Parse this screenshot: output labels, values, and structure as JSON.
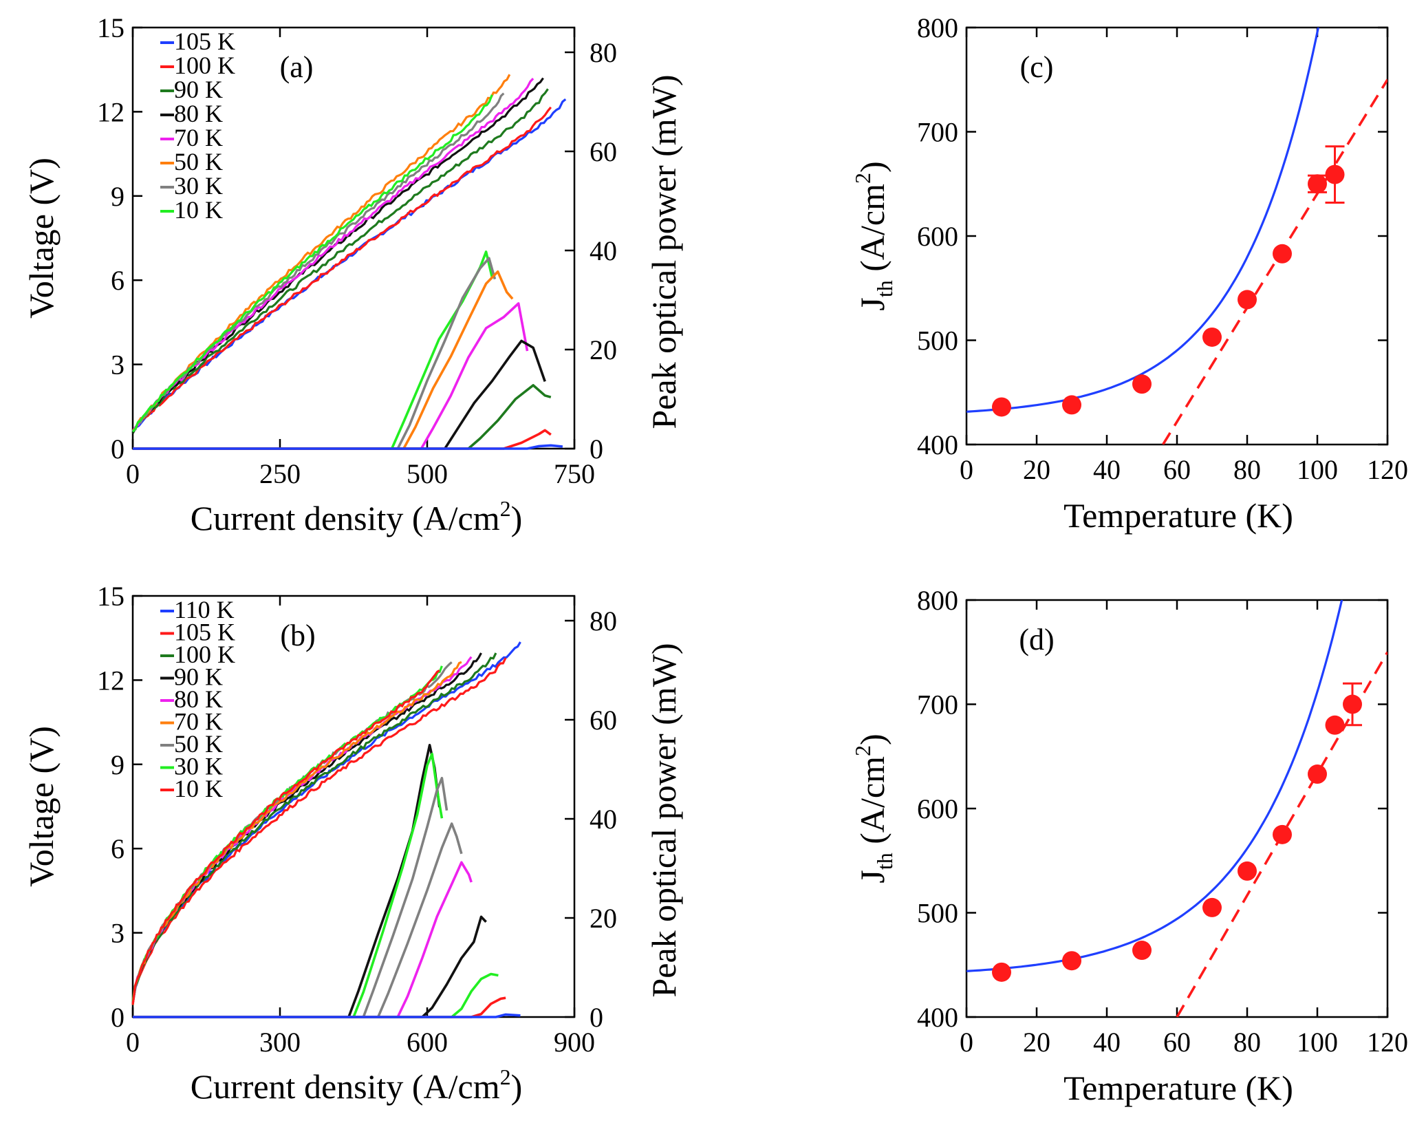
{
  "colors": {
    "105 K": "#1f3fff",
    "110 K": "#1f3fff",
    "100 K": "#ff1a1a",
    "90 K": "#1e7a1e",
    "80 K": "#111111",
    "70 K": "#ee22ee",
    "50 K": "#ff7f0e",
    "30 K": "#808080",
    "10 K": "#22ee22",
    "fit": "#1f3fff",
    "dash": "#ff1a1a",
    "marker": "#ff1a1a"
  },
  "chart_data": [
    {
      "id": "a",
      "type": "line",
      "panel_label": "(a)",
      "xlabel_main": "Current density (A/cm",
      "xlabel_sup": "2",
      "xlabel_end": ")",
      "ylabel": "Voltage (V)",
      "y2label": "Peak optical power (mW)",
      "xlim": [
        0,
        750
      ],
      "ylim": [
        0,
        15
      ],
      "y2lim": [
        0,
        85
      ],
      "xticks": [
        0,
        250,
        500,
        750
      ],
      "yticks": [
        0,
        3,
        6,
        9,
        12,
        15
      ],
      "y2ticks": [
        0,
        20,
        40,
        60,
        80
      ],
      "legend": [
        "105 K",
        "100 K",
        "90 K",
        "80 K",
        "70 K",
        "50 K",
        "30 K",
        "10 K"
      ],
      "legend_colors": [
        "#1f3fff",
        "#ff1a1a",
        "#1e7a1e",
        "#111111",
        "#ee22ee",
        "#ff7f0e",
        "#808080",
        "#22ee22"
      ],
      "voltage": [
        {
          "name": "105 K",
          "color": "#1f3fff",
          "xmax": 735,
          "vmax": 12.1
        },
        {
          "name": "100 K",
          "color": "#ff1a1a",
          "xmax": 710,
          "vmax": 11.8
        },
        {
          "name": "90 K",
          "color": "#1e7a1e",
          "xmax": 705,
          "vmax": 12.4
        },
        {
          "name": "80 K",
          "color": "#111111",
          "xmax": 697,
          "vmax": 12.9
        },
        {
          "name": "70 K",
          "color": "#ee22ee",
          "xmax": 680,
          "vmax": 12.8
        },
        {
          "name": "50 K",
          "color": "#ff7f0e",
          "xmax": 640,
          "vmax": 13.0
        },
        {
          "name": "30 K",
          "color": "#808080",
          "xmax": 630,
          "vmax": 12.3
        },
        {
          "name": "10 K",
          "color": "#22ee22",
          "xmax": 610,
          "vmax": 12.2
        }
      ],
      "power": [
        {
          "name": "10 K",
          "color": "#22ee22",
          "points": [
            [
              0,
              0
            ],
            [
              440,
              0
            ],
            [
              460,
              5
            ],
            [
              490,
              14
            ],
            [
              520,
              22
            ],
            [
              560,
              30
            ],
            [
              590,
              37
            ],
            [
              600,
              40
            ],
            [
              610,
              35
            ]
          ]
        },
        {
          "name": "30 K",
          "color": "#808080",
          "points": [
            [
              0,
              0
            ],
            [
              450,
              0
            ],
            [
              470,
              5
            ],
            [
              500,
              14
            ],
            [
              530,
              22
            ],
            [
              560,
              30
            ],
            [
              590,
              36
            ],
            [
              605,
              38
            ],
            [
              615,
              34
            ]
          ]
        },
        {
          "name": "50 K",
          "color": "#ff7f0e",
          "points": [
            [
              0,
              0
            ],
            [
              460,
              0
            ],
            [
              480,
              4
            ],
            [
              510,
              12
            ],
            [
              540,
              19
            ],
            [
              570,
              26
            ],
            [
              600,
              33
            ],
            [
              620,
              36
            ],
            [
              635,
              32
            ],
            [
              645,
              30
            ]
          ]
        },
        {
          "name": "70 K",
          "color": "#ee22ee",
          "points": [
            [
              0,
              0
            ],
            [
              490,
              0
            ],
            [
              510,
              4
            ],
            [
              540,
              11
            ],
            [
              570,
              18
            ],
            [
              600,
              24
            ],
            [
              630,
              27
            ],
            [
              655,
              29
            ],
            [
              670,
              20
            ]
          ]
        },
        {
          "name": "80 K",
          "color": "#111111",
          "points": [
            [
              0,
              0
            ],
            [
              530,
              0
            ],
            [
              550,
              4
            ],
            [
              580,
              9
            ],
            [
              610,
              14
            ],
            [
              640,
              19
            ],
            [
              660,
              22
            ],
            [
              680,
              20
            ],
            [
              700,
              14
            ]
          ]
        },
        {
          "name": "90 K",
          "color": "#1e7a1e",
          "points": [
            [
              0,
              0
            ],
            [
              570,
              0
            ],
            [
              590,
              2
            ],
            [
              620,
              6
            ],
            [
              650,
              10
            ],
            [
              680,
              13
            ],
            [
              700,
              11
            ],
            [
              710,
              10
            ]
          ]
        },
        {
          "name": "100 K",
          "color": "#ff1a1a",
          "points": [
            [
              0,
              0
            ],
            [
              630,
              0
            ],
            [
              660,
              1
            ],
            [
              690,
              3
            ],
            [
              700,
              3.5
            ],
            [
              710,
              3
            ]
          ]
        },
        {
          "name": "105 K",
          "color": "#1f3fff",
          "points": [
            [
              0,
              0
            ],
            [
              670,
              0
            ],
            [
              690,
              0.5
            ],
            [
              710,
              0.8
            ],
            [
              730,
              0.6
            ]
          ]
        }
      ]
    },
    {
      "id": "b",
      "type": "line",
      "panel_label": "(b)",
      "xlabel_main": "Current density (A/cm",
      "xlabel_sup": "2",
      "xlabel_end": ")",
      "ylabel": "Voltage (V)",
      "y2label": "Peak optical power (mW)",
      "xlim": [
        0,
        900
      ],
      "ylim": [
        0,
        15
      ],
      "y2lim": [
        0,
        85
      ],
      "xticks": [
        0,
        300,
        600,
        900
      ],
      "yticks": [
        0,
        3,
        6,
        9,
        12,
        15
      ],
      "y2ticks": [
        0,
        20,
        40,
        60,
        80
      ],
      "legend": [
        "110 K",
        "105 K",
        "100 K",
        "90 K",
        "80 K",
        "70 K",
        "50 K",
        "30 K",
        "10 K"
      ],
      "legend_colors": [
        "#1f3fff",
        "#ff1a1a",
        "#1e7a1e",
        "#111111",
        "#ee22ee",
        "#ff7f0e",
        "#808080",
        "#22ee22",
        "#ff1a1a"
      ],
      "voltage": [
        {
          "name": "110 K",
          "color": "#1f3fff",
          "xmax": 790,
          "vmax": 13.0
        },
        {
          "name": "105 K",
          "color": "#ff1a1a",
          "xmax": 760,
          "vmax": 12.4
        },
        {
          "name": "100 K",
          "color": "#1e7a1e",
          "xmax": 740,
          "vmax": 12.6
        },
        {
          "name": "90 K",
          "color": "#111111",
          "xmax": 710,
          "vmax": 12.6
        },
        {
          "name": "80 K",
          "color": "#ee22ee",
          "xmax": 690,
          "vmax": 12.5
        },
        {
          "name": "70 K",
          "color": "#ff7f0e",
          "xmax": 670,
          "vmax": 12.3
        },
        {
          "name": "50 K",
          "color": "#808080",
          "xmax": 650,
          "vmax": 12.3
        },
        {
          "name": "30 K",
          "color": "#22ee22",
          "xmax": 630,
          "vmax": 12.1
        },
        {
          "name": "10 K",
          "color": "#ff1a1a",
          "xmax": 625,
          "vmax": 12.0
        }
      ],
      "power": [
        {
          "name": "90 K",
          "color": "#111111",
          "points": [
            [
              0,
              0
            ],
            [
              440,
              0
            ],
            [
              460,
              5
            ],
            [
              500,
              17
            ],
            [
              540,
              28
            ],
            [
              570,
              38
            ],
            [
              590,
              48
            ],
            [
              605,
              55
            ],
            [
              615,
              50
            ],
            [
              625,
              42
            ]
          ]
        },
        {
          "name": "10 K",
          "color": "#22ee22",
          "points": [
            [
              0,
              0
            ],
            [
              450,
              0
            ],
            [
              470,
              5
            ],
            [
              510,
              17
            ],
            [
              550,
              30
            ],
            [
              580,
              41
            ],
            [
              600,
              51
            ],
            [
              610,
              53
            ],
            [
              620,
              46
            ],
            [
              630,
              40
            ]
          ]
        },
        {
          "name": "30 K",
          "color": "#808080",
          "points": [
            [
              0,
              0
            ],
            [
              470,
              0
            ],
            [
              490,
              5
            ],
            [
              530,
              16
            ],
            [
              570,
              28
            ],
            [
              600,
              38
            ],
            [
              620,
              46
            ],
            [
              630,
              48
            ],
            [
              640,
              42
            ]
          ]
        },
        {
          "name": "50 K",
          "color": "#808080",
          "points": [
            [
              0,
              0
            ],
            [
              500,
              0
            ],
            [
              520,
              5
            ],
            [
              560,
              15
            ],
            [
              600,
              26
            ],
            [
              630,
              34
            ],
            [
              650,
              39
            ],
            [
              660,
              36
            ],
            [
              670,
              33
            ]
          ]
        },
        {
          "name": "80 K",
          "color": "#ee22ee",
          "points": [
            [
              0,
              0
            ],
            [
              540,
              0
            ],
            [
              560,
              4
            ],
            [
              590,
              12
            ],
            [
              620,
              20
            ],
            [
              650,
              27
            ],
            [
              670,
              31
            ],
            [
              685,
              29
            ],
            [
              690,
              27
            ]
          ]
        },
        {
          "name": "100 K",
          "color": "#111111",
          "points": [
            [
              0,
              0
            ],
            [
              590,
              0
            ],
            [
              610,
              2
            ],
            [
              640,
              7
            ],
            [
              670,
              12
            ],
            [
              695,
              15
            ],
            [
              710,
              20
            ],
            [
              720,
              19
            ]
          ]
        },
        {
          "name": "105 K",
          "color": "#22ee22",
          "points": [
            [
              0,
              0
            ],
            [
              650,
              0
            ],
            [
              670,
              2
            ],
            [
              690,
              5
            ],
            [
              710,
              8
            ],
            [
              730,
              9
            ],
            [
              745,
              8.5
            ]
          ]
        },
        {
          "name": "110 K",
          "color": "#ff1a1a",
          "points": [
            [
              0,
              0
            ],
            [
              690,
              0
            ],
            [
              710,
              1
            ],
            [
              730,
              3
            ],
            [
              750,
              4
            ],
            [
              760,
              3.5
            ]
          ]
        },
        {
          "name": "110 K base",
          "color": "#1f3fff",
          "points": [
            [
              0,
              0
            ],
            [
              740,
              0
            ],
            [
              760,
              0.5
            ],
            [
              790,
              0.3
            ]
          ]
        }
      ]
    },
    {
      "id": "c",
      "type": "scatter",
      "panel_label": "(c)",
      "xlabel": "Temperature (K)",
      "ylabel_main": "J",
      "ylabel_sub": "th",
      "ylabel_unit": " (A/cm",
      "ylabel_sup": "2",
      "ylabel_end": ")",
      "xlim": [
        0,
        120
      ],
      "ylim": [
        400,
        800
      ],
      "xticks": [
        0,
        20,
        40,
        60,
        80,
        100,
        120
      ],
      "yticks": [
        400,
        500,
        600,
        700,
        800
      ],
      "points": [
        [
          10,
          436
        ],
        [
          30,
          438
        ],
        [
          50,
          458
        ],
        [
          70,
          503
        ],
        [
          80,
          539
        ],
        [
          90,
          583
        ],
        [
          100,
          650
        ],
        [
          105,
          659
        ]
      ],
      "errorbars": [
        {
          "x": 100,
          "lo": 642,
          "hi": 658
        },
        {
          "x": 105,
          "lo": 632,
          "hi": 686
        }
      ],
      "fit": {
        "J0": 427,
        "A": 4.5,
        "T0": 22.7,
        "xmax": 115
      },
      "dashed": [
        [
          56,
          400
        ],
        [
          120,
          750
        ]
      ]
    },
    {
      "id": "d",
      "type": "scatter",
      "panel_label": "(d)",
      "xlabel": "Temperature (K)",
      "ylabel_main": "J",
      "ylabel_sub": "th",
      "ylabel_unit": " (A/cm",
      "ylabel_sup": "2",
      "ylabel_end": ")",
      "xlim": [
        0,
        120
      ],
      "ylim": [
        400,
        800
      ],
      "xticks": [
        0,
        20,
        40,
        60,
        80,
        100,
        120
      ],
      "yticks": [
        400,
        500,
        600,
        700,
        800
      ],
      "points": [
        [
          10,
          443
        ],
        [
          30,
          454
        ],
        [
          50,
          464
        ],
        [
          70,
          505
        ],
        [
          80,
          540
        ],
        [
          90,
          575
        ],
        [
          100,
          633
        ],
        [
          105,
          680
        ],
        [
          110,
          700
        ]
      ],
      "errorbars": [
        {
          "x": 110,
          "lo": 680,
          "hi": 720
        }
      ],
      "fit": {
        "J0": 439,
        "A": 5.0,
        "T0": 25.0,
        "xmax": 117
      },
      "dashed": [
        [
          60,
          400
        ],
        [
          120,
          750
        ]
      ]
    }
  ]
}
